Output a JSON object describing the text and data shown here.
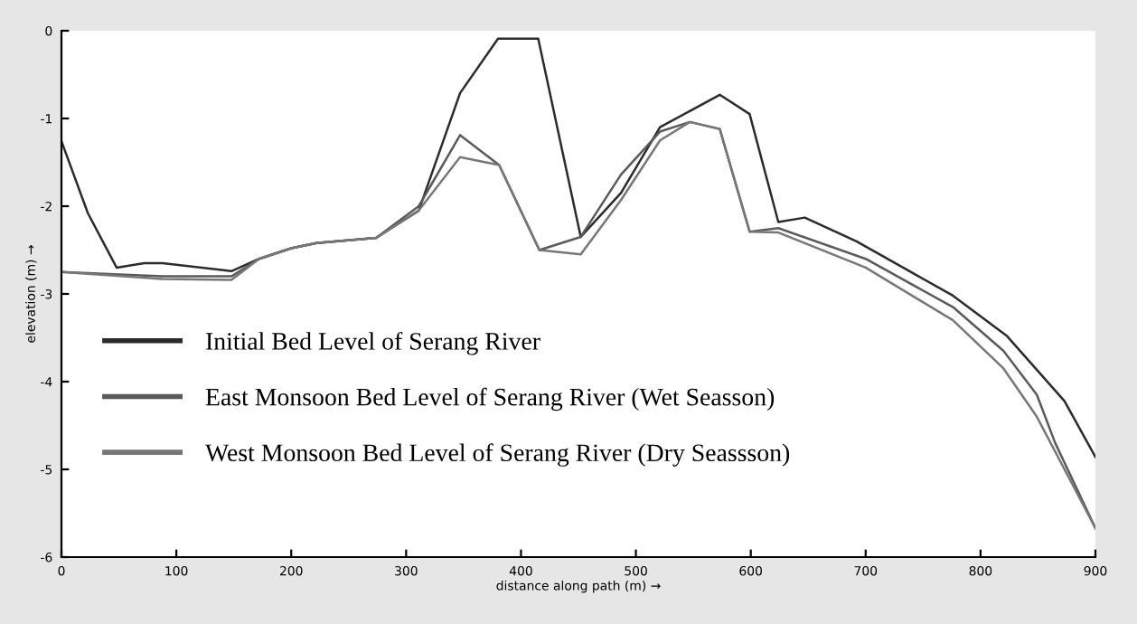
{
  "chart_data": {
    "type": "line",
    "xlabel": "distance along path (m) →",
    "ylabel": "elevation (m) →",
    "xlim": [
      0,
      900
    ],
    "ylim": [
      -6,
      0
    ],
    "xticks": [
      0,
      100,
      200,
      300,
      400,
      500,
      600,
      700,
      800,
      900
    ],
    "yticks": [
      -6,
      -5,
      -4,
      -3,
      -2,
      -1,
      0
    ],
    "grid": false,
    "legend": "left",
    "marker": "none",
    "line_style": "solid",
    "series": [
      {
        "name": "Initial Bed Level of Serang River",
        "color": "#2b2b2b",
        "x": [
          0,
          23,
          48,
          72,
          88,
          148,
          172,
          200,
          222,
          274,
          311,
          347,
          380,
          415,
          452,
          487,
          521,
          573,
          599,
          624,
          647,
          692,
          734,
          776,
          823,
          873,
          900
        ],
        "values": [
          -1.26,
          -2.08,
          -2.7,
          -2.65,
          -2.65,
          -2.74,
          -2.6,
          -2.48,
          -2.42,
          -2.36,
          -2.05,
          -0.71,
          -0.09,
          -0.09,
          -2.35,
          -1.85,
          -1.1,
          -0.73,
          -0.95,
          -2.18,
          -2.13,
          -2.4,
          -2.71,
          -3.02,
          -3.48,
          -4.22,
          -4.86
        ]
      },
      {
        "name": "East Monsoon Bed Level of Serang River (Wet Seasson)",
        "color": "#5a5a5a",
        "x": [
          0,
          88,
          148,
          172,
          200,
          222,
          274,
          311,
          347,
          381,
          416,
          452,
          487,
          521,
          547,
          573,
          599,
          624,
          700,
          776,
          820,
          849,
          865,
          900
        ],
        "values": [
          -2.75,
          -2.8,
          -2.8,
          -2.6,
          -2.48,
          -2.42,
          -2.36,
          -2.0,
          -1.19,
          -1.53,
          -2.5,
          -2.35,
          -1.64,
          -1.15,
          -1.04,
          -1.12,
          -2.29,
          -2.25,
          -2.6,
          -3.15,
          -3.65,
          -4.15,
          -4.7,
          -5.67
        ]
      },
      {
        "name": "West Monsoon Bed Level of Serang River (Dry Seassson)",
        "color": "#777777",
        "x": [
          0,
          88,
          148,
          172,
          200,
          222,
          274,
          311,
          347,
          381,
          416,
          452,
          487,
          521,
          547,
          573,
          599,
          624,
          700,
          776,
          820,
          849,
          900
        ],
        "values": [
          -2.75,
          -2.83,
          -2.84,
          -2.6,
          -2.48,
          -2.42,
          -2.36,
          -2.05,
          -1.44,
          -1.53,
          -2.5,
          -2.55,
          -1.93,
          -1.25,
          -1.04,
          -1.12,
          -2.29,
          -2.3,
          -2.7,
          -3.3,
          -3.85,
          -4.4,
          -5.67
        ]
      }
    ]
  }
}
